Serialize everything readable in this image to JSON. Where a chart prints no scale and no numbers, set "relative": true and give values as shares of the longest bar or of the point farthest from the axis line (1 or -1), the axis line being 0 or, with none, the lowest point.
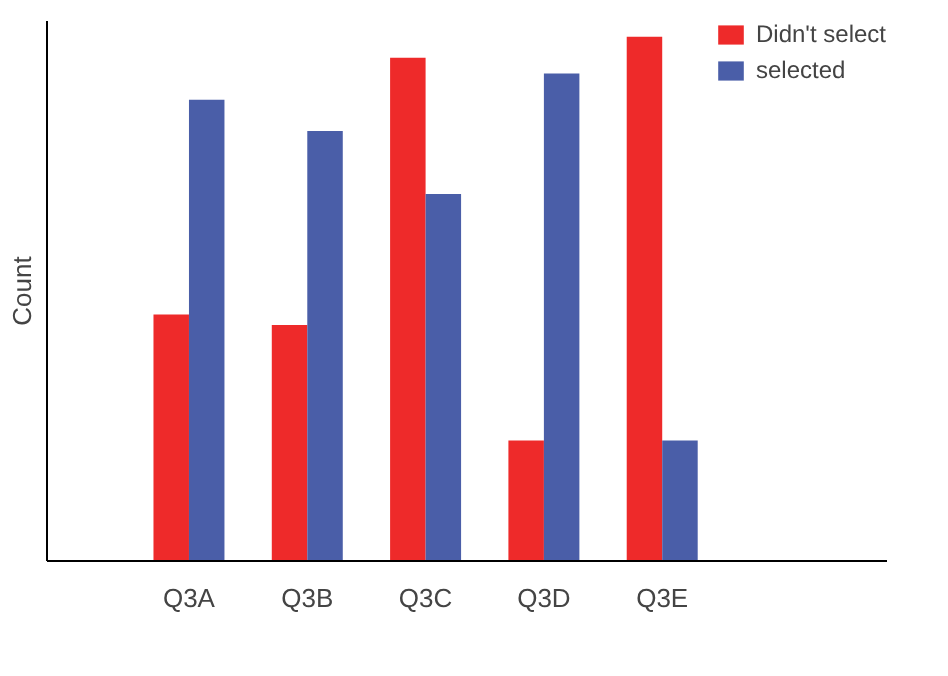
{
  "chart_data": {
    "type": "bar",
    "relative": true,
    "ylabel": "Count",
    "categories": [
      "Q3A",
      "Q3B",
      "Q3C",
      "Q3D",
      "Q3E"
    ],
    "series": [
      {
        "name": "Didn't select",
        "color": "#ee2a2a",
        "values": [
          0.47,
          0.45,
          0.96,
          0.23,
          1.0
        ]
      },
      {
        "name": "selected",
        "color": "#4a5ea8",
        "values": [
          0.88,
          0.82,
          0.7,
          0.93,
          0.23
        ]
      }
    ],
    "legend": "top right",
    "grid": false
  }
}
